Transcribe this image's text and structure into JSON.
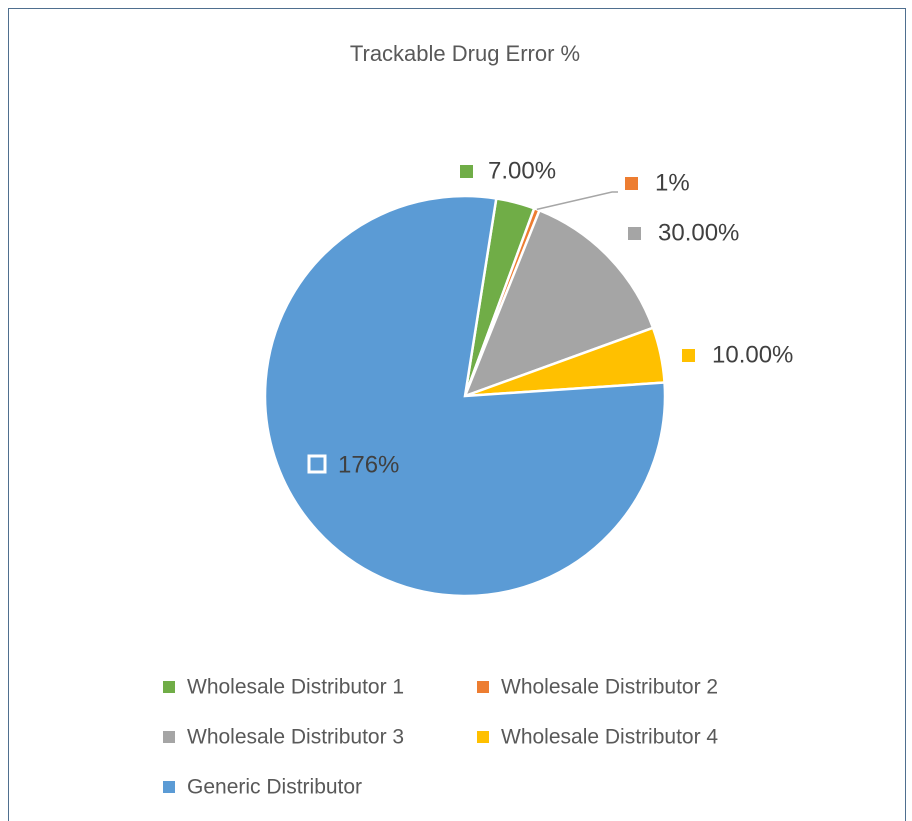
{
  "chart_data": {
    "type": "pie",
    "title": "Trackable Drug Error %",
    "categories": [
      "Wholesale Distributor 1",
      "Wholesale Distributor 2",
      "Wholesale Distributor 3",
      "Wholesale Distributor 4",
      "Generic Distributor"
    ],
    "values": [
      7,
      1,
      30,
      10,
      176
    ],
    "value_labels": [
      "7.00%",
      "1%",
      "30.00%",
      "10.00%",
      "176%"
    ],
    "colors": [
      "#70ad47",
      "#ed7d31",
      "#a5a5a5",
      "#ffc000",
      "#5b9bd5"
    ],
    "legend": "bottom"
  }
}
